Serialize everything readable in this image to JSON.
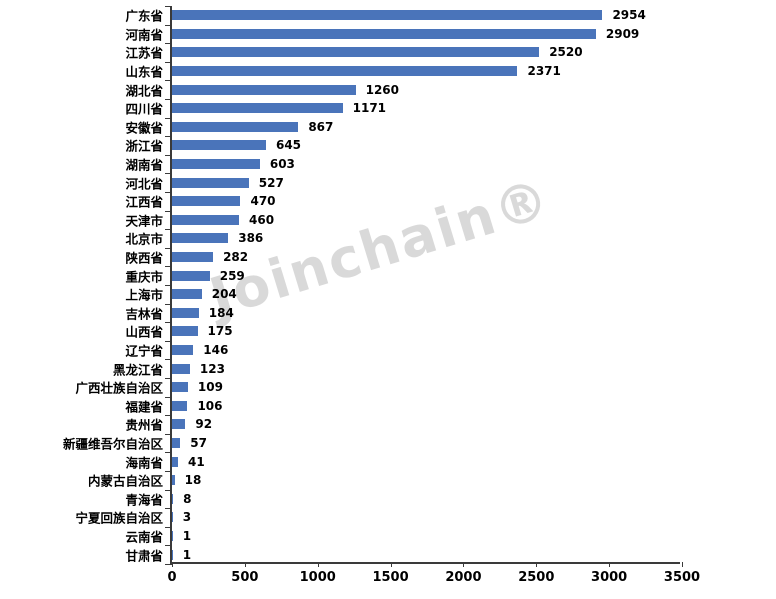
{
  "watermark": {
    "text": "Joinchain®"
  },
  "chart_data": {
    "type": "bar",
    "orientation": "horizontal",
    "title": "",
    "xlabel": "",
    "ylabel": "",
    "grid": false,
    "legend": false,
    "value_labels": true,
    "bar_color": "#4a74ba",
    "axis_color": "#3a3a3a",
    "xlim": [
      0,
      3500
    ],
    "x_ticks": [
      0,
      500,
      1000,
      1500,
      2000,
      2500,
      3000,
      3500
    ],
    "categories": [
      "广东省",
      "河南省",
      "江苏省",
      "山东省",
      "湖北省",
      "四川省",
      "安徽省",
      "浙江省",
      "湖南省",
      "河北省",
      "江西省",
      "天津市",
      "北京市",
      "陕西省",
      "重庆市",
      "上海市",
      "吉林省",
      "山西省",
      "辽宁省",
      "黑龙江省",
      "广西壮族自治区",
      "福建省",
      "贵州省",
      "新疆维吾尔自治区",
      "海南省",
      "内蒙古自治区",
      "青海省",
      "宁夏回族自治区",
      "云南省",
      "甘肃省"
    ],
    "values": [
      2954,
      2909,
      2520,
      2371,
      1260,
      1171,
      867,
      645,
      603,
      527,
      470,
      460,
      386,
      282,
      259,
      204,
      184,
      175,
      146,
      123,
      109,
      106,
      92,
      57,
      41,
      18,
      8,
      3,
      1,
      1
    ]
  }
}
